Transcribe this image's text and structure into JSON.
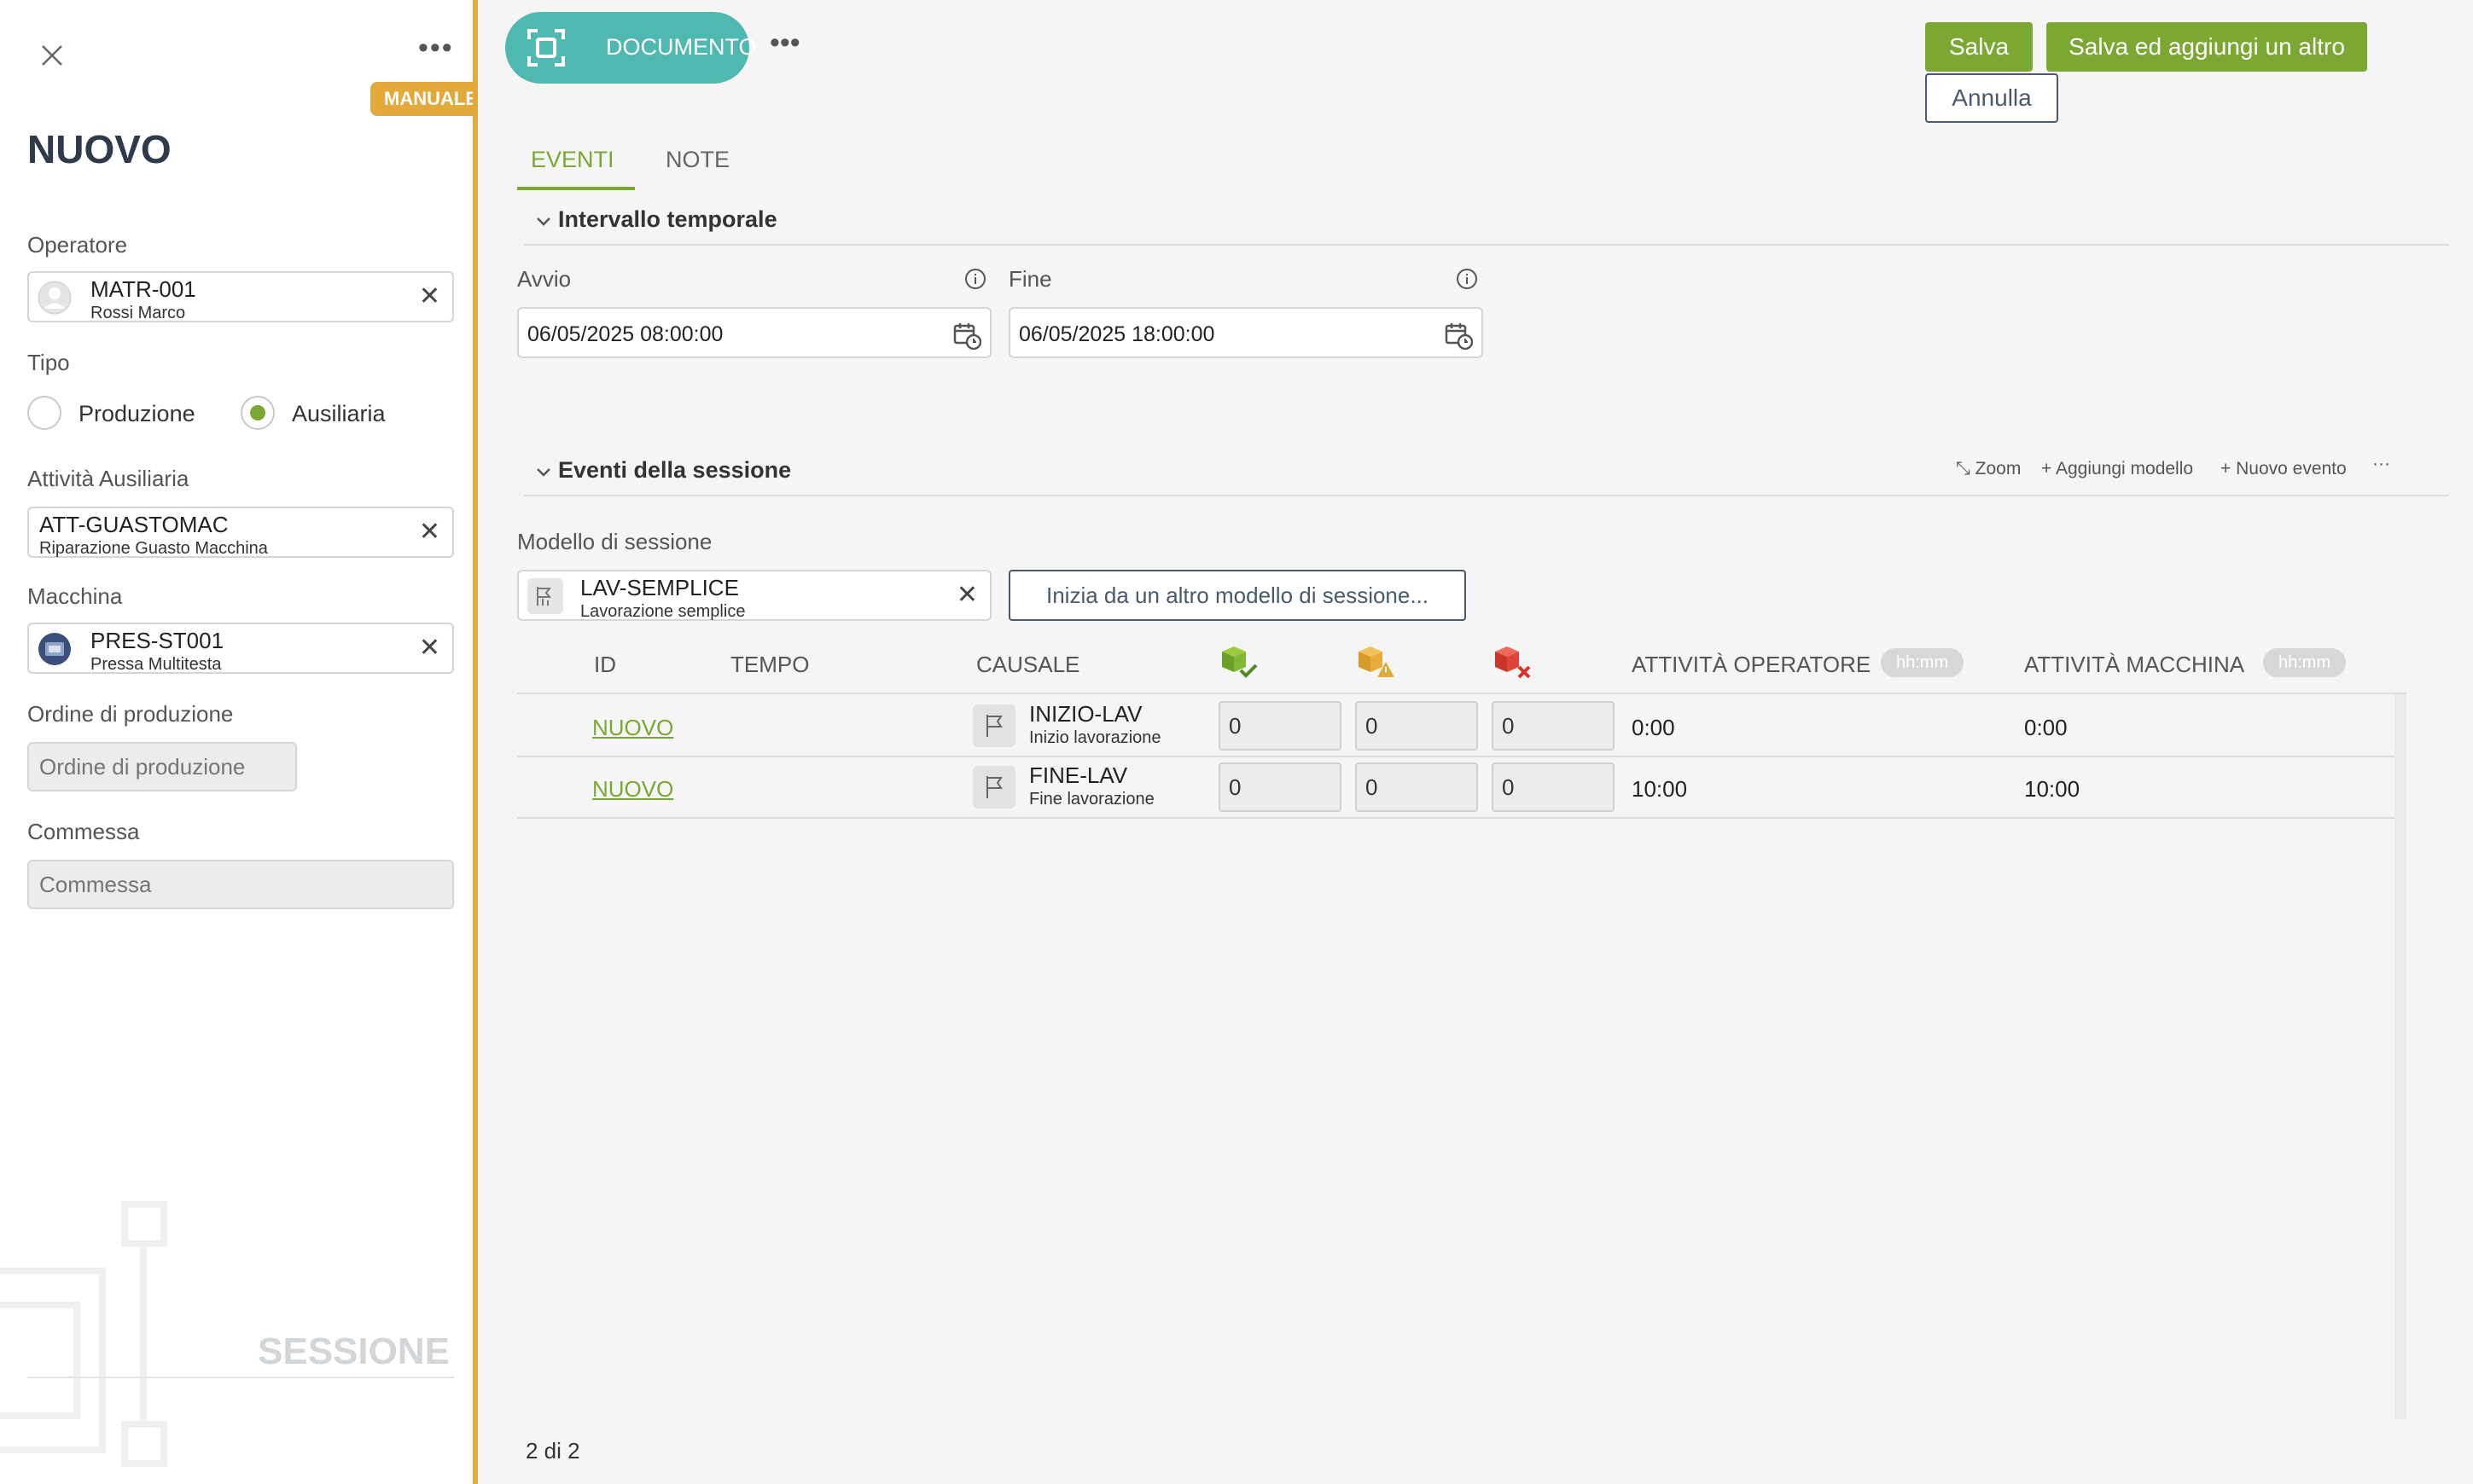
{
  "left_panel": {
    "manuale_badge": "MANUALE",
    "title": "NUOVO",
    "operatore": {
      "label": "Operatore",
      "code": "MATR-001",
      "desc": "Rossi Marco"
    },
    "tipo": {
      "label": "Tipo",
      "options": [
        "Produzione",
        "Ausiliaria"
      ],
      "selected": "Ausiliaria"
    },
    "attivita": {
      "label": "Attività Ausiliaria",
      "code": "ATT-GUASTOMAC",
      "desc": "Riparazione Guasto Macchina"
    },
    "macchina": {
      "label": "Macchina",
      "code": "PRES-ST001",
      "desc": "Pressa Multitesta"
    },
    "ordine": {
      "label": "Ordine di produzione",
      "placeholder": "Ordine di produzione"
    },
    "commessa": {
      "label": "Commessa",
      "placeholder": "Commessa"
    },
    "watermark": "SESSIONE"
  },
  "header": {
    "doc_button": "DOCUMENTO",
    "save": "Salva",
    "save_add": "Salva ed aggiungi un altro",
    "cancel": "Annulla"
  },
  "tabs": [
    "EVENTI",
    "NOTE"
  ],
  "intervallo": {
    "title": "Intervallo temporale",
    "avvio_label": "Avvio",
    "avvio_value": "06/05/2025 08:00:00",
    "fine_label": "Fine",
    "fine_value": "06/05/2025 18:00:00"
  },
  "eventi": {
    "title": "Eventi della sessione",
    "toolbar": {
      "zoom": "Zoom",
      "add_model": "Aggiungi modello",
      "new_event": "Nuovo evento"
    },
    "modello_label": "Modello di sessione",
    "modello_code": "LAV-SEMPLICE",
    "modello_desc": "Lavorazione semplice",
    "altro_button": "Inizia da un altro modello di sessione...",
    "columns": {
      "id": "ID",
      "tempo": "TEMPO",
      "causale": "CAUSALE",
      "att_operatore": "ATTIVITÀ OPERATORE",
      "att_macchina": "ATTIVITÀ MACCHINA",
      "unit": "hh:mm"
    },
    "rows": [
      {
        "id": "NUOVO",
        "causale_code": "INIZIO-LAV",
        "causale_desc": "Inizio lavorazione",
        "good": "0",
        "warn": "0",
        "scrap": "0",
        "att_op": "0:00",
        "att_mac": "0:00"
      },
      {
        "id": "NUOVO",
        "causale_code": "FINE-LAV",
        "causale_desc": "Fine lavorazione",
        "good": "0",
        "warn": "0",
        "scrap": "0",
        "att_op": "10:00",
        "att_mac": "10:00"
      }
    ]
  },
  "footer": {
    "pagination": "2 di 2"
  },
  "colors": {
    "accent_green": "#7aa832",
    "teal": "#4fb8b1",
    "orange": "#e3a93b"
  }
}
